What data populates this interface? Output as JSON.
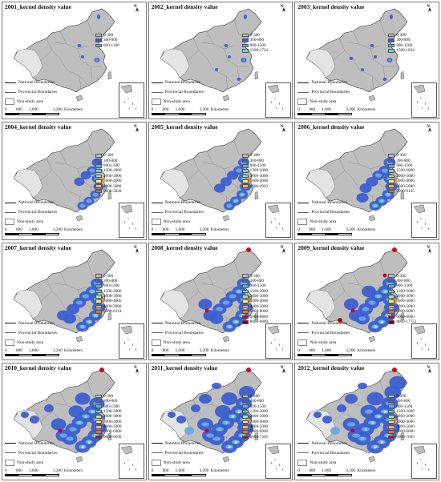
{
  "colors": {
    "0-300": "#bebebe",
    "300-800": "#3c5fd0",
    "800-1100": "#6ba5e8",
    "800-1500": "#6ba5e8",
    "1500-2000": "#6ad6d2",
    "2000-3000": "#a6e6a0",
    "3000-4000": "#ffee7a",
    "4000-5000": "#ffb347",
    "5000-6000": "#ff6a1f",
    "6000-8000": "#c8001a",
    "high": "#8a0014"
  },
  "common": {
    "national": "National Boundaries",
    "provincial": "Provincial Boundaries",
    "nonstudy": "Non-study area",
    "scale": [
      "0",
      "800",
      "1,600",
      "3,200"
    ],
    "unit": "Kilometers",
    "north": "N"
  },
  "panels": [
    {
      "title": "2001_kernel density value",
      "legend": [
        "0-300",
        "300-800",
        "800-1100"
      ]
    },
    {
      "title": "2002_kernel density value",
      "legend": [
        "0-300",
        "300-800",
        "800-1500",
        "1500-1724"
      ]
    },
    {
      "title": "2003_kernel density value",
      "legend": [
        "0-300",
        "300-800",
        "800-1500",
        "1500-1834"
      ]
    },
    {
      "title": "2004_kernel density value",
      "legend": [
        "0-300",
        "300-800",
        "800-1500",
        "1500-2000",
        "2000-3000",
        "3000-4000",
        "4000-5000",
        "5000-5628"
      ]
    },
    {
      "title": "2005_kernel density value",
      "legend": [
        "0-300",
        "300-800",
        "800-1500",
        "1500-2000",
        "2000-3000",
        "3000-4000",
        "4000-4903"
      ]
    },
    {
      "title": "2006_kernel density value",
      "legend": [
        "0-300",
        "300-800",
        "800-1500",
        "1500-2000",
        "2000-3000",
        "3000-4000",
        "4000-5000",
        "5000-6165"
      ]
    },
    {
      "title": "2007_kernel density value",
      "legend": [
        "0-300",
        "300-800",
        "800-1500",
        "1500-2000",
        "2000-3000",
        "3000-4000",
        "4000-5000",
        "5000-6114"
      ]
    },
    {
      "title": "2008_kernel density value",
      "legend": [
        "0-300",
        "300-800",
        "800-1500",
        "1500-2000",
        "2000-3000",
        "3000-4000",
        "4000-5000",
        "5000-6000",
        "6000-8000",
        "8000-8889"
      ]
    },
    {
      "title": "2009_kernel density value",
      "legend": [
        "0-300",
        "300-800",
        "800-1500",
        "1500-2000",
        "2000-3000",
        "3000-4000",
        "4000-5000",
        "5000-6000",
        "6000-8000",
        "8000-17751"
      ]
    },
    {
      "title": "2010_kernel density value",
      "legend": [
        "0-300",
        "300-800",
        "800-1500",
        "1500-2000",
        "2000-3000",
        "3000-4000",
        "4000-5000",
        "5000-6000",
        "6000-6690"
      ]
    },
    {
      "title": "2011_kernel density value",
      "legend": [
        "0-300",
        "300-800",
        "800-1500",
        "1500-2000",
        "2000-3000",
        "3000-4000",
        "4000-5000",
        "5000-6000",
        "6000-7395"
      ]
    },
    {
      "title": "2012_kernel density value",
      "legend": [
        "0-300",
        "300-800",
        "800-1500",
        "1500-2000",
        "2000-3000",
        "3000-4000",
        "4000-5000",
        "5000-6000",
        "6000-7695"
      ]
    }
  ]
}
